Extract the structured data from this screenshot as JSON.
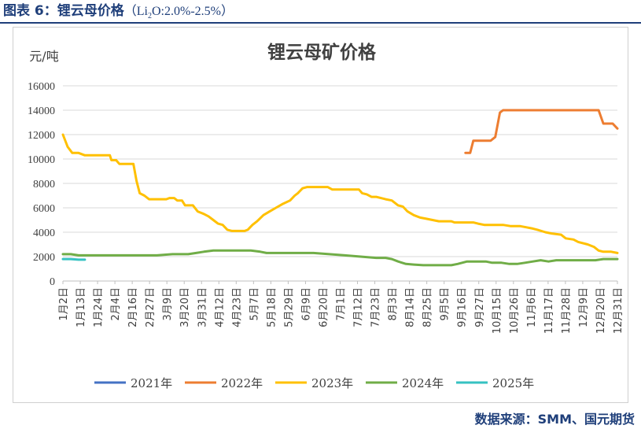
{
  "figure": {
    "label": "图表 6：",
    "name": "锂云母价格",
    "formula_pre": "（Li",
    "formula_sub": "2",
    "formula_post": "O:2.0%-2.5%）"
  },
  "source": "数据来源：SMM、国元期货",
  "chart_data": {
    "type": "line",
    "title": "锂云母矿价格",
    "ylabel": "元/吨",
    "xlabel": "",
    "ylim": [
      0,
      16000
    ],
    "yticks": [
      0,
      2000,
      4000,
      6000,
      8000,
      10000,
      12000,
      14000,
      16000
    ],
    "x_tick_labels": [
      "1月2日",
      "1月13日",
      "1月24日",
      "2月4日",
      "2月16日",
      "2月27日",
      "3月9日",
      "3月20日",
      "3月31日",
      "4月12日",
      "4月23日",
      "5月7日",
      "5月18日",
      "5月29日",
      "6月9日",
      "6月20日",
      "7月1日",
      "7月12日",
      "7月23日",
      "8月3日",
      "8月14日",
      "8月25日",
      "9月5日",
      "9月16日",
      "9月27日",
      "10月15日",
      "10月26日",
      "11月6日",
      "11月17日",
      "11月28日",
      "12月9日",
      "12月20日",
      "12月31日"
    ],
    "grid": true,
    "legend_position": "bottom",
    "colors": {
      "2021年": "#4472c4",
      "2022年": "#ed7d31",
      "2023年": "#ffc000",
      "2024年": "#70ad47",
      "2025年": "#36c2c2"
    },
    "series": [
      {
        "name": "2021年",
        "points": []
      },
      {
        "name": "2022年",
        "points": [
          [
            25.7,
            10500
          ],
          [
            26.0,
            10500
          ],
          [
            26.2,
            11500
          ],
          [
            27.3,
            11500
          ],
          [
            27.6,
            11800
          ],
          [
            27.9,
            13800
          ],
          [
            28.1,
            14000
          ],
          [
            34.2,
            14000
          ],
          [
            34.5,
            12900
          ],
          [
            35.1,
            12900
          ],
          [
            35.4,
            12500
          ]
        ]
      },
      {
        "name": "2023年",
        "points": [
          [
            0.0,
            12000
          ],
          [
            0.3,
            11000
          ],
          [
            0.6,
            10500
          ],
          [
            1.0,
            10500
          ],
          [
            1.4,
            10300
          ],
          [
            2.6,
            10300
          ],
          [
            3.0,
            10300
          ],
          [
            3.1,
            9900
          ],
          [
            3.4,
            9900
          ],
          [
            3.6,
            9600
          ],
          [
            4.5,
            9600
          ],
          [
            4.7,
            8200
          ],
          [
            4.9,
            7200
          ],
          [
            5.2,
            7000
          ],
          [
            5.5,
            6700
          ],
          [
            6.0,
            6700
          ],
          [
            6.6,
            6700
          ],
          [
            6.8,
            6800
          ],
          [
            7.1,
            6800
          ],
          [
            7.3,
            6600
          ],
          [
            7.6,
            6600
          ],
          [
            7.8,
            6200
          ],
          [
            8.3,
            6200
          ],
          [
            8.6,
            5700
          ],
          [
            9.0,
            5500
          ],
          [
            9.3,
            5300
          ],
          [
            9.6,
            5000
          ],
          [
            9.9,
            4700
          ],
          [
            10.2,
            4600
          ],
          [
            10.5,
            4200
          ],
          [
            10.8,
            4100
          ],
          [
            11.3,
            4100
          ],
          [
            11.6,
            4100
          ],
          [
            11.8,
            4200
          ],
          [
            12.1,
            4600
          ],
          [
            12.4,
            4900
          ],
          [
            12.8,
            5400
          ],
          [
            13.2,
            5700
          ],
          [
            13.6,
            6000
          ],
          [
            14.0,
            6300
          ],
          [
            14.5,
            6600
          ],
          [
            14.8,
            7000
          ],
          [
            15.0,
            7200
          ],
          [
            15.3,
            7600
          ],
          [
            15.6,
            7700
          ],
          [
            16.0,
            7700
          ],
          [
            16.6,
            7700
          ],
          [
            16.9,
            7700
          ],
          [
            17.2,
            7500
          ],
          [
            17.8,
            7500
          ],
          [
            18.6,
            7500
          ],
          [
            18.9,
            7500
          ],
          [
            19.1,
            7200
          ],
          [
            19.4,
            7100
          ],
          [
            19.7,
            6900
          ],
          [
            20.0,
            6900
          ],
          [
            20.6,
            6700
          ],
          [
            21.0,
            6600
          ],
          [
            21.4,
            6200
          ],
          [
            21.7,
            6100
          ],
          [
            22.0,
            5700
          ],
          [
            22.4,
            5400
          ],
          [
            22.8,
            5200
          ],
          [
            23.2,
            5100
          ],
          [
            23.6,
            5000
          ],
          [
            24.0,
            4900
          ],
          [
            24.8,
            4900
          ],
          [
            25.0,
            4800
          ],
          [
            26.2,
            4800
          ],
          [
            26.5,
            4700
          ],
          [
            26.9,
            4600
          ],
          [
            28.1,
            4600
          ],
          [
            28.6,
            4500
          ],
          [
            29.2,
            4500
          ],
          [
            29.6,
            4400
          ],
          [
            30.0,
            4300
          ],
          [
            30.3,
            4200
          ],
          [
            30.8,
            4000
          ],
          [
            31.2,
            3900
          ],
          [
            31.8,
            3800
          ],
          [
            32.1,
            3500
          ],
          [
            32.6,
            3400
          ],
          [
            32.9,
            3200
          ],
          [
            33.5,
            3000
          ],
          [
            33.9,
            2800
          ],
          [
            34.2,
            2500
          ],
          [
            34.5,
            2400
          ],
          [
            35.0,
            2400
          ],
          [
            35.4,
            2300
          ]
        ]
      },
      {
        "name": "2024年",
        "points": [
          [
            0.0,
            2200
          ],
          [
            0.5,
            2200
          ],
          [
            1.0,
            2100
          ],
          [
            2.0,
            2100
          ],
          [
            3.0,
            2100
          ],
          [
            4.0,
            2100
          ],
          [
            5.0,
            2100
          ],
          [
            6.0,
            2100
          ],
          [
            7.0,
            2200
          ],
          [
            8.0,
            2200
          ],
          [
            8.5,
            2300
          ],
          [
            9.0,
            2400
          ],
          [
            9.6,
            2500
          ],
          [
            10.0,
            2500
          ],
          [
            11.0,
            2500
          ],
          [
            11.6,
            2500
          ],
          [
            12.0,
            2500
          ],
          [
            12.6,
            2400
          ],
          [
            13.0,
            2300
          ],
          [
            14.0,
            2300
          ],
          [
            15.0,
            2300
          ],
          [
            16.0,
            2300
          ],
          [
            17.0,
            2200
          ],
          [
            18.0,
            2100
          ],
          [
            19.0,
            2000
          ],
          [
            20.0,
            1900
          ],
          [
            20.6,
            1900
          ],
          [
            21.0,
            1800
          ],
          [
            21.4,
            1600
          ],
          [
            21.9,
            1400
          ],
          [
            22.4,
            1350
          ],
          [
            23.0,
            1300
          ],
          [
            24.0,
            1300
          ],
          [
            24.8,
            1300
          ],
          [
            25.2,
            1400
          ],
          [
            25.8,
            1600
          ],
          [
            26.5,
            1600
          ],
          [
            27.0,
            1600
          ],
          [
            27.4,
            1500
          ],
          [
            28.0,
            1500
          ],
          [
            28.5,
            1400
          ],
          [
            29.0,
            1400
          ],
          [
            29.5,
            1500
          ],
          [
            30.0,
            1600
          ],
          [
            30.5,
            1700
          ],
          [
            31.0,
            1600
          ],
          [
            31.5,
            1700
          ],
          [
            32.0,
            1700
          ],
          [
            32.5,
            1700
          ],
          [
            33.0,
            1700
          ],
          [
            33.5,
            1700
          ],
          [
            34.0,
            1700
          ],
          [
            34.5,
            1800
          ],
          [
            35.4,
            1800
          ]
        ]
      },
      {
        "name": "2025年",
        "points": [
          [
            0.0,
            1800
          ],
          [
            0.5,
            1800
          ],
          [
            1.0,
            1750
          ],
          [
            1.4,
            1750
          ]
        ]
      }
    ]
  }
}
